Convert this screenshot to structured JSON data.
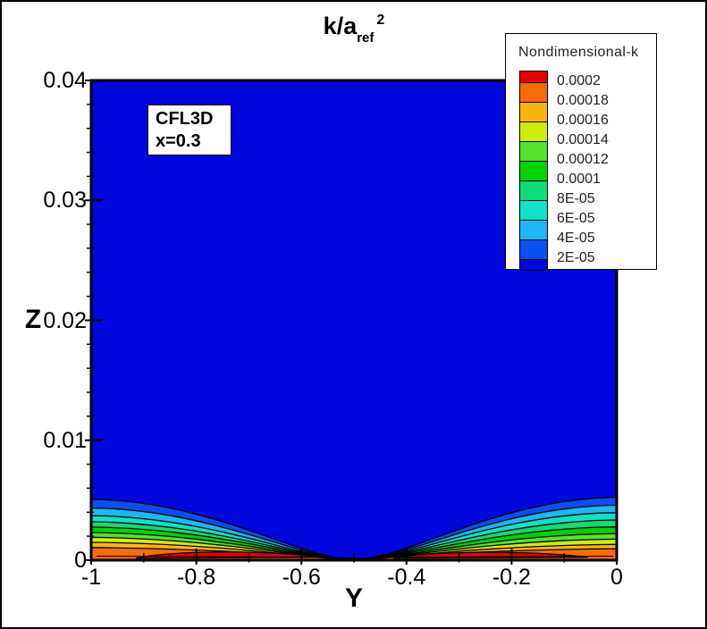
{
  "annotation": {
    "line1": "CFL3D",
    "line2": "x=0.3"
  },
  "chart_data": {
    "type": "contour",
    "title": {
      "main": "k/a",
      "sub": "ref",
      "sup": "2"
    },
    "xlabel": "Y",
    "ylabel": "Z",
    "x_range": [
      -1,
      0
    ],
    "x_ticks": [
      "-1",
      "-0.8",
      "-0.6",
      "-0.4",
      "-0.2",
      "0"
    ],
    "x_tick_values": [
      -1,
      -0.8,
      -0.6,
      -0.4,
      -0.2,
      0
    ],
    "x_minor_step": 0.1,
    "z_range": [
      0,
      0.04
    ],
    "z_ticks": [
      "0",
      "0.01",
      "0.02",
      "0.03",
      "0.04"
    ],
    "z_tick_values": [
      0,
      0.01,
      0.02,
      0.03,
      0.04
    ],
    "z_minor_step": 0.002,
    "legend": {
      "title": "Nondimensional-k",
      "labels": [
        "0.0002",
        "0.00018",
        "0.00016",
        "0.00014",
        "0.00012",
        "0.0001",
        "8E-05",
        "6E-05",
        "4E-05",
        "2E-05"
      ],
      "band_colors_top_to_bottom": [
        "#E60000",
        "#F86A0A",
        "#FCB60A",
        "#D0EC0C",
        "#55E428",
        "#00D400",
        "#10DC78",
        "#0FE2C8",
        "#1CB8F0",
        "#0A50F0",
        "#0007DD"
      ]
    },
    "field_color": "#0007DD",
    "pinch_center_y": -0.5,
    "contour_boundaries": [
      {
        "level": "2E-05",
        "z_left": 0.00507,
        "z_right": 0.00524,
        "pinch_halfwidth_y": 0.02,
        "fill_below": "#0A50F0"
      },
      {
        "level": "4E-05",
        "z_left": 0.00435,
        "z_right": 0.00458,
        "pinch_halfwidth_y": 0.024,
        "fill_below": "#1CB8F0"
      },
      {
        "level": "6E-05",
        "z_left": 0.00372,
        "z_right": 0.00396,
        "pinch_halfwidth_y": 0.028,
        "fill_below": "#0FE2C8"
      },
      {
        "level": "8E-05",
        "z_left": 0.0032,
        "z_right": 0.00335,
        "pinch_halfwidth_y": 0.031,
        "fill_below": "#10DC78"
      },
      {
        "level": "0.0001",
        "z_left": 0.00276,
        "z_right": 0.00278,
        "pinch_halfwidth_y": 0.034,
        "fill_below": "#00D400"
      },
      {
        "level": "0.00012",
        "z_left": 0.00231,
        "z_right": 0.00222,
        "pinch_halfwidth_y": 0.038,
        "fill_below": "#55E428"
      },
      {
        "level": "0.00014",
        "z_left": 0.00191,
        "z_right": 0.00176,
        "pinch_halfwidth_y": 0.042,
        "fill_below": "#D0EC0C"
      },
      {
        "level": "0.00016",
        "z_left": 0.00149,
        "z_right": 0.00132,
        "pinch_halfwidth_y": 0.046,
        "fill_below": "#FCB60A"
      },
      {
        "level": "0.00018",
        "z_left": 0.00106,
        "z_right": 0.00096,
        "pinch_halfwidth_y": 0.05,
        "fill_below": "#F86A0A"
      }
    ],
    "red_regions": [
      {
        "y_start": -0.915,
        "y_end": -0.565,
        "peak_z": 0.00082,
        "fill": "#E60000"
      },
      {
        "y_start": -0.425,
        "y_end": -0.055,
        "peak_z": 0.00078,
        "fill": "#E60000"
      }
    ]
  }
}
